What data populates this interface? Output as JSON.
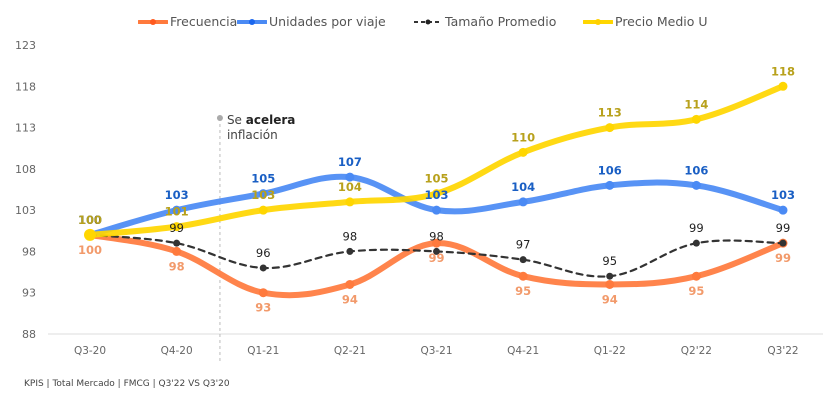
{
  "chart_data": {
    "type": "line",
    "title": "",
    "xlabel": "",
    "ylabel": "",
    "categories": [
      "Q3-20",
      "Q4-20",
      "Q1-21",
      "Q2-21",
      "Q3-21",
      "Q4-21",
      "Q1-22",
      "Q2'22",
      "Q3'22"
    ],
    "ylim": [
      88,
      123
    ],
    "yticks": [
      88,
      93,
      98,
      103,
      108,
      113,
      118,
      123
    ],
    "grid": false,
    "legend_position": "top-center",
    "series": [
      {
        "name": "Frecuencia",
        "color": "#ff7a3d",
        "label_color": "#f29a6b",
        "style": "solid",
        "label_position": "below",
        "values": [
          100,
          98,
          93,
          94,
          99,
          95,
          94,
          95,
          99
        ]
      },
      {
        "name": "Unidades por viaje",
        "color": "#4a8af4",
        "label_color": "#1a5fc4",
        "style": "solid",
        "label_position": "above",
        "values": [
          100,
          103,
          105,
          107,
          103,
          104,
          106,
          106,
          103
        ]
      },
      {
        "name": "Tamaño Promedio",
        "color": "#333333",
        "label_color": "#222222",
        "style": "dashed",
        "label_position": "above",
        "values": [
          100,
          99,
          96,
          98,
          98,
          97,
          95,
          99,
          99
        ]
      },
      {
        "name": "Precio Medio U",
        "color": "#ffd600",
        "label_color": "#b8a11c",
        "style": "solid",
        "label_position": "above",
        "values": [
          100,
          101,
          103,
          104,
          105,
          110,
          113,
          114,
          118
        ]
      }
    ],
    "annotation": {
      "category": "Q1-21",
      "text_prefix": "Se ",
      "text_bold": "acelera",
      "text_line2": "inflación"
    }
  },
  "footer": "KPIS | Total Mercado | FMCG | Q3'22 VS Q3'20"
}
